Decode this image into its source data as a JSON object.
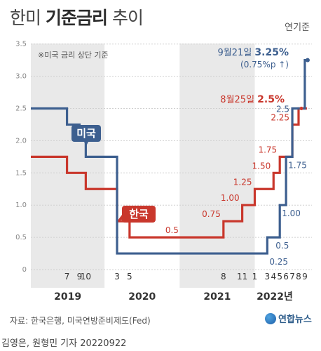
{
  "title": {
    "part1": "한미",
    "bold": "기준금리",
    "part2": "추이"
  },
  "basis_label": "연기준",
  "note": "※미국 금리 상단 기준",
  "source": "자료: 한국은행, 미국연방준비제도(Fed)",
  "credit": "김영은, 원형민 기자 20220922",
  "logo_text": "연합뉴스",
  "colors": {
    "us": "#3d5f8f",
    "korea": "#c9372c",
    "band": "#e9e9e9",
    "grid": "#d0d0d0"
  },
  "chart_data": {
    "type": "line",
    "step": true,
    "ylim": [
      0,
      3.5
    ],
    "yticks": [
      0,
      0.5,
      1.0,
      1.5,
      2.0,
      2.5,
      3.0,
      3.5
    ],
    "ytick_labels": [
      "0",
      "0.5",
      "1.0",
      "1.5",
      "2.0",
      "2.5",
      "3.0",
      "3.5"
    ],
    "x_start": "2019-01",
    "x_end": "2022-09",
    "month_ticks": [
      {
        "label": "7",
        "x": "2019-07"
      },
      {
        "label": "9",
        "x": "2019-09"
      },
      {
        "label": "10",
        "x": "2019-10"
      },
      {
        "label": "3",
        "x": "2020-03"
      },
      {
        "label": "5",
        "x": "2020-05"
      },
      {
        "label": "8",
        "x": "2021-08"
      },
      {
        "label": "11",
        "x": "2021-11"
      },
      {
        "label": "1",
        "x": "2022-01"
      },
      {
        "label": "3",
        "x": "2022-03"
      },
      {
        "label": "4",
        "x": "2022-04"
      },
      {
        "label": "5",
        "x": "2022-05"
      },
      {
        "label": "6",
        "x": "2022-06"
      },
      {
        "label": "7",
        "x": "2022-07"
      },
      {
        "label": "8",
        "x": "2022-08"
      },
      {
        "label": "9",
        "x": "2022-09"
      }
    ],
    "years": [
      {
        "label": "2019",
        "from": "2019-01",
        "to": "2020-01",
        "shaded": true
      },
      {
        "label": "2020",
        "from": "2020-01",
        "to": "2021-01",
        "shaded": false
      },
      {
        "label": "2021",
        "from": "2021-01",
        "to": "2022-01",
        "shaded": true
      },
      {
        "label": "2022년",
        "from": "2022-01",
        "to": "2022-10",
        "shaded": false
      }
    ],
    "series": [
      {
        "name": "미국",
        "color": "#3d5f8f",
        "points": [
          {
            "x": "2019-01",
            "y": 2.5
          },
          {
            "x": "2019-07",
            "y": 2.25
          },
          {
            "x": "2019-09",
            "y": 2.0
          },
          {
            "x": "2019-10",
            "y": 1.75
          },
          {
            "x": "2020-03",
            "y": 0.25
          },
          {
            "x": "2022-03",
            "y": 0.5
          },
          {
            "x": "2022-05",
            "y": 1.0
          },
          {
            "x": "2022-06",
            "y": 1.75
          },
          {
            "x": "2022-07",
            "y": 2.5
          },
          {
            "x": "2022-09",
            "y": 3.25
          }
        ],
        "labels": [
          {
            "text": "0.25",
            "x": "2022-03",
            "y": 0.25
          },
          {
            "text": "0.5",
            "x": "2022-04",
            "y": 0.5
          },
          {
            "text": "1.00",
            "x": "2022-05",
            "y": 1.0
          },
          {
            "text": "1.75",
            "x": "2022-06",
            "y": 1.75
          },
          {
            "text": "2.5",
            "x": "2022-07",
            "y": 2.5
          }
        ]
      },
      {
        "name": "한국",
        "color": "#c9372c",
        "points": [
          {
            "x": "2019-01",
            "y": 1.75
          },
          {
            "x": "2019-07",
            "y": 1.5
          },
          {
            "x": "2019-10",
            "y": 1.25
          },
          {
            "x": "2020-03",
            "y": 0.75
          },
          {
            "x": "2020-05",
            "y": 0.5
          },
          {
            "x": "2021-08",
            "y": 0.75
          },
          {
            "x": "2021-11",
            "y": 1.0
          },
          {
            "x": "2022-01",
            "y": 1.25
          },
          {
            "x": "2022-04",
            "y": 1.5
          },
          {
            "x": "2022-05",
            "y": 1.75
          },
          {
            "x": "2022-07",
            "y": 2.25
          },
          {
            "x": "2022-08",
            "y": 2.5
          }
        ],
        "labels": [
          {
            "text": "0.5",
            "x": "2020-12",
            "y": 0.5
          },
          {
            "text": "0.75",
            "x": "2021-08",
            "y": 0.75
          },
          {
            "text": "1.00",
            "x": "2021-11",
            "y": 1.0
          },
          {
            "text": "1.25",
            "x": "2022-01",
            "y": 1.25
          },
          {
            "text": "1.50",
            "x": "2022-04",
            "y": 1.5
          },
          {
            "text": "1.75",
            "x": "2022-05",
            "y": 1.75
          },
          {
            "text": "2.25",
            "x": "2022-07",
            "y": 2.25
          }
        ]
      }
    ],
    "annotations": {
      "us_latest": {
        "date_text": "9월21일",
        "value_text": "3.25%",
        "sub_text": "(0.75%p ↑)"
      },
      "korea_latest": {
        "date_text": "8월25일",
        "value_text": "2.5%"
      }
    }
  }
}
